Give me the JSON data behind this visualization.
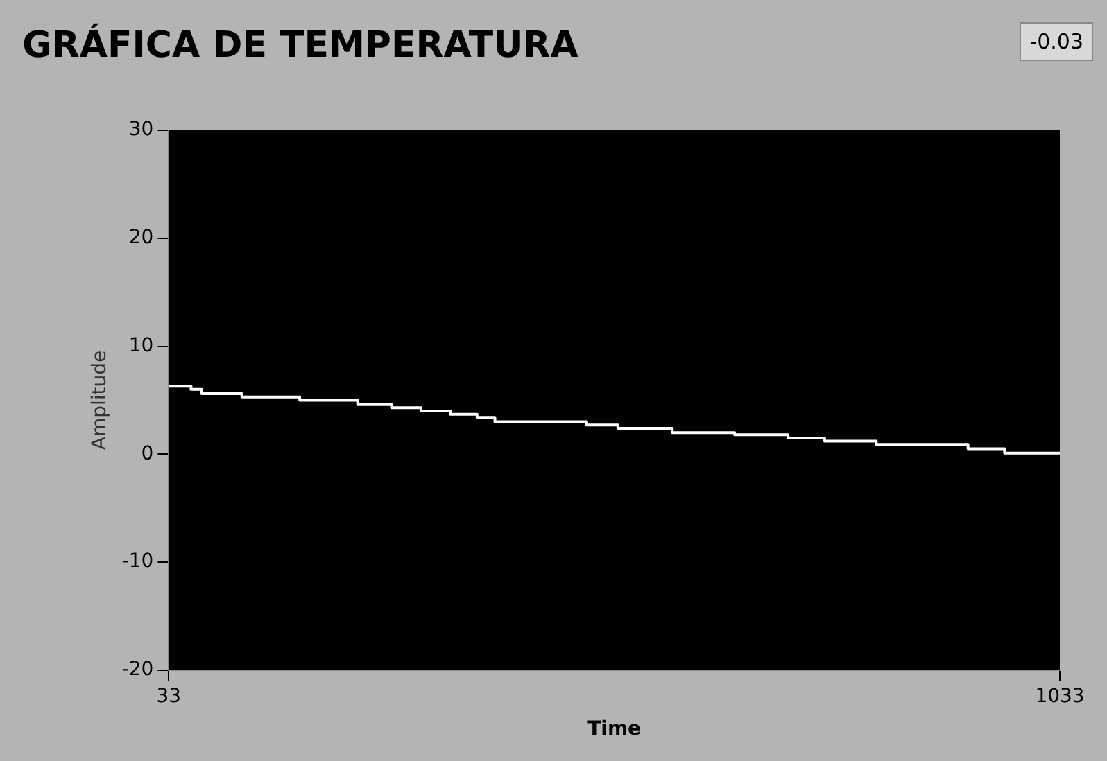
{
  "chart_data": {
    "type": "step",
    "title": "GRÁFICA DE TEMPERATURA",
    "xlabel": "Time",
    "ylabel": "Amplitude",
    "annotations": [
      "-0.03"
    ],
    "x": [
      33,
      58,
      70,
      115,
      180,
      245,
      283,
      316,
      349,
      379,
      399,
      502,
      537,
      598,
      668,
      728,
      769,
      827,
      930,
      971,
      1033
    ],
    "series": [
      {
        "color": "#ffffff",
        "values": [
          6.3,
          6.0,
          5.6,
          5.3,
          5.0,
          4.6,
          4.3,
          4.0,
          3.7,
          3.4,
          3.0,
          2.7,
          2.4,
          2.0,
          1.8,
          1.5,
          1.2,
          0.9,
          0.5,
          0.1,
          0.0
        ]
      }
    ],
    "xlim": [
      33,
      1033
    ],
    "xticks": [
      33,
      1033
    ],
    "ylim": [
      -20,
      30
    ],
    "yticks": [
      -20,
      -10,
      0,
      10,
      20,
      30
    ],
    "legend": false
  }
}
